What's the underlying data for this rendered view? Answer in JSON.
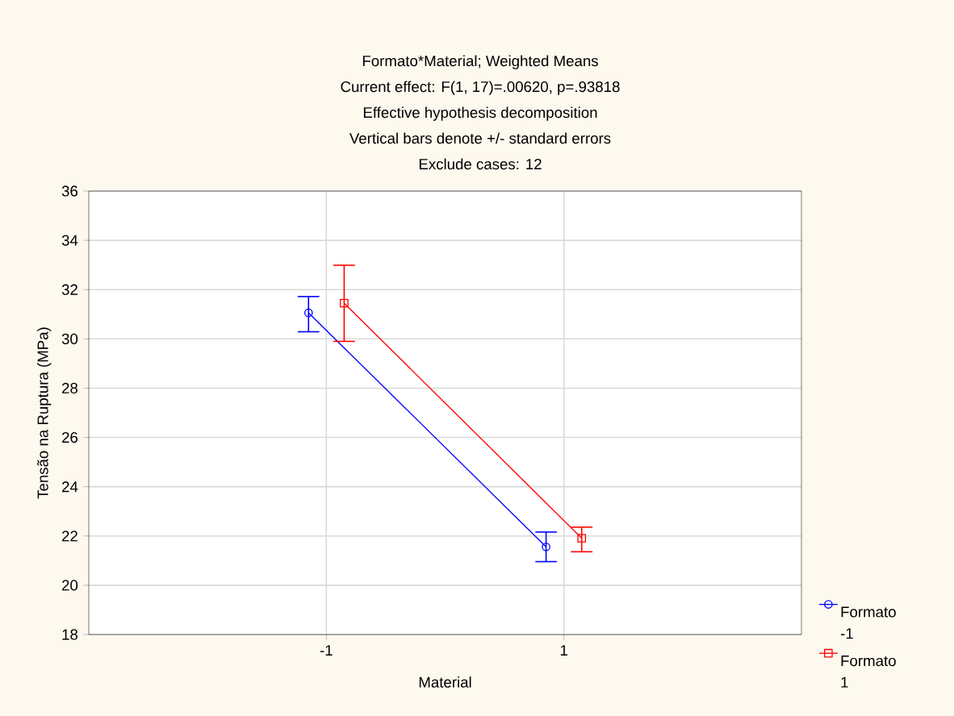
{
  "chart_data": {
    "type": "line",
    "title": "Formato*Material; Weighted Means",
    "subtitle": "Current effect: F(1, 17)=.00620, p=.93818",
    "annotations": [
      "Effective hypothesis decomposition",
      "Vertical bars denote +/- standard errors",
      "Exclude cases: 12"
    ],
    "xlabel": "Material",
    "ylabel": "Tensão na Ruptura (MPa)",
    "categories": [
      "-1",
      "1"
    ],
    "series": [
      {
        "name": "Formato\n-1",
        "color": "#0000ff",
        "marker": "circle",
        "values": [
          31.06,
          21.56
        ],
        "errors": [
          [
            30.29,
            31.72
          ],
          [
            20.96,
            22.16
          ]
        ]
      },
      {
        "name": "Formato\n1",
        "color": "#ff0000",
        "marker": "square",
        "values": [
          31.45,
          21.91
        ],
        "errors": [
          [
            29.9,
            32.99
          ],
          [
            21.36,
            22.36
          ]
        ]
      }
    ],
    "ylim": [
      18,
      36
    ],
    "yticks": [
      18,
      20,
      22,
      24,
      26,
      28,
      30,
      32,
      34,
      36
    ],
    "grid": true,
    "legend": "bottom right",
    "line_style": "solid"
  }
}
